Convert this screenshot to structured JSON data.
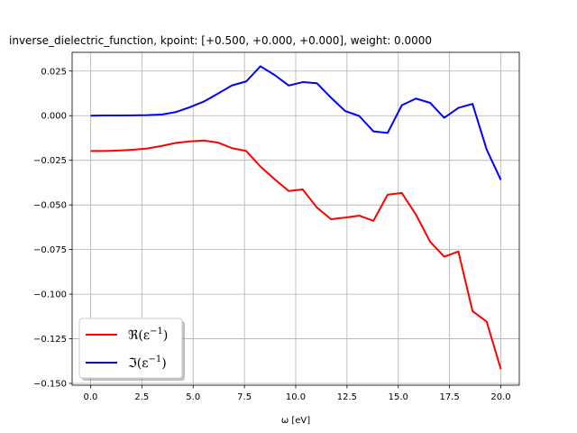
{
  "chart_data": {
    "type": "line",
    "title": "inverse_dielectric_function, kpoint: [+0.500, +0.000, +0.000], weight: 0.0000",
    "xlabel": "ω [eV]",
    "ylabel": "",
    "xlim": [
      -0.9,
      20.9
    ],
    "ylim": [
      -0.151,
      0.0355
    ],
    "xticks": [
      "0.0",
      "2.5",
      "5.0",
      "7.5",
      "10.0",
      "12.5",
      "15.0",
      "17.5",
      "20.0"
    ],
    "yticks": [
      "−0.150",
      "−0.125",
      "−0.100",
      "−0.075",
      "−0.050",
      "−0.025",
      "0.000",
      "0.025"
    ],
    "grid": true,
    "legend_position": "lower-left",
    "x": [
      0.0,
      0.69,
      1.38,
      2.07,
      2.76,
      3.45,
      4.14,
      4.83,
      5.52,
      6.21,
      6.9,
      7.59,
      8.28,
      8.97,
      9.66,
      10.34,
      11.03,
      11.72,
      12.41,
      13.1,
      13.79,
      14.48,
      15.17,
      15.86,
      16.55,
      17.24,
      17.93,
      18.62,
      19.31,
      20.0
    ],
    "series": [
      {
        "name": "ℜ(ε⁻¹)",
        "color": "#ff0000",
        "values": [
          -0.0198,
          -0.0198,
          -0.0195,
          -0.0191,
          -0.0184,
          -0.017,
          -0.0153,
          -0.0144,
          -0.0139,
          -0.0151,
          -0.0182,
          -0.0198,
          -0.0285,
          -0.0356,
          -0.0422,
          -0.0413,
          -0.0514,
          -0.058,
          -0.0571,
          -0.056,
          -0.0589,
          -0.0443,
          -0.0433,
          -0.0554,
          -0.0706,
          -0.079,
          -0.0761,
          -0.1095,
          -0.1154,
          -0.142
        ]
      },
      {
        "name": "ℑ(ε⁻¹)",
        "color": "#0000ff",
        "values": [
          0.0,
          0.0001,
          0.0001,
          0.0002,
          0.0003,
          0.0006,
          0.002,
          0.0047,
          0.0079,
          0.0124,
          0.017,
          0.0192,
          0.0277,
          0.0228,
          0.0169,
          0.0188,
          0.0182,
          0.0101,
          0.0026,
          -0.0002,
          -0.0088,
          -0.0097,
          0.0058,
          0.0096,
          0.0072,
          -0.0012,
          0.0044,
          0.0066,
          -0.019,
          -0.036
        ]
      }
    ],
    "legend": [
      {
        "label": "ℜ(ε⁻¹)",
        "main": "ℜ(ε",
        "sup": "−1",
        "close": ")",
        "color": "#ff0000"
      },
      {
        "label": "ℑ(ε⁻¹)",
        "main": "ℑ(ε",
        "sup": "−1",
        "close": ")",
        "color": "#0000ff"
      }
    ],
    "axes_color": "#000000",
    "grid_color": "#b0b0b0"
  }
}
